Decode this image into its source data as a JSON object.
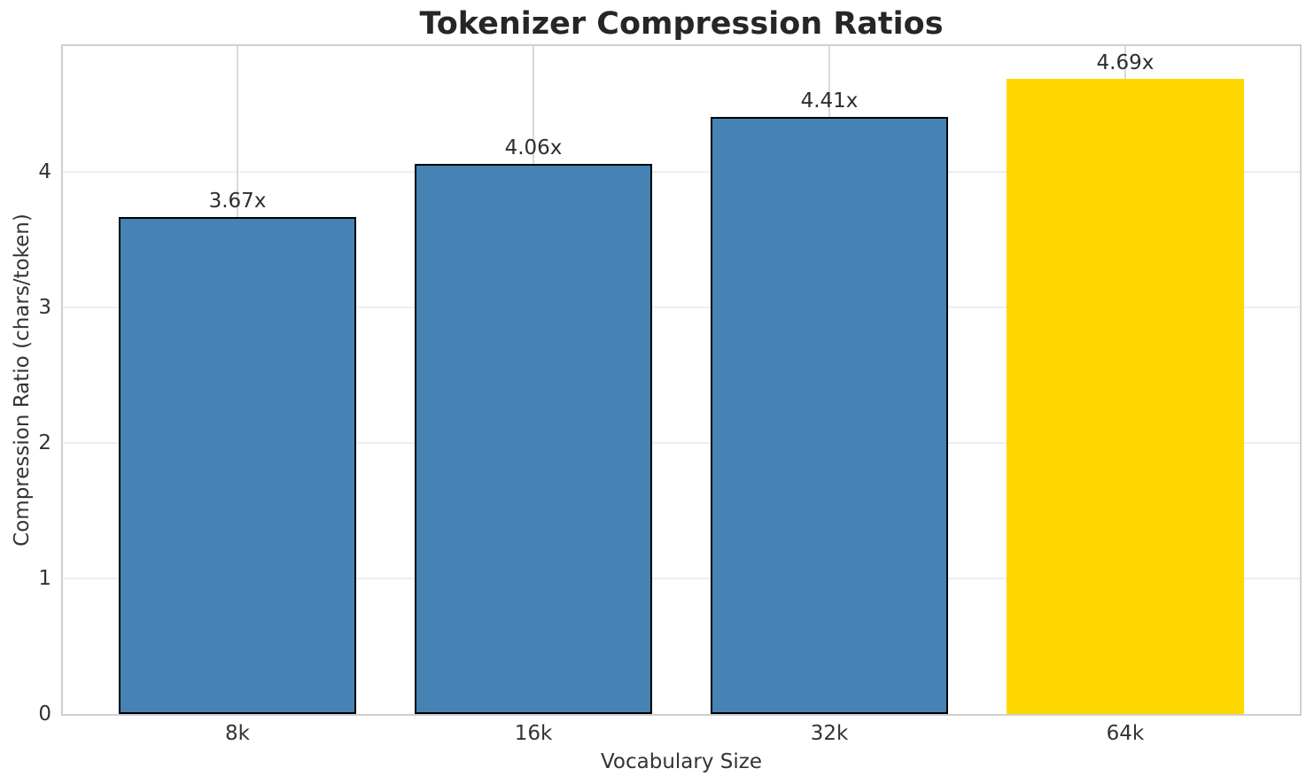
{
  "chart_data": {
    "type": "bar",
    "title": "Tokenizer Compression Ratios",
    "xlabel": "Vocabulary Size",
    "ylabel": "Compression Ratio (chars/token)",
    "categories": [
      "8k",
      "16k",
      "32k",
      "64k"
    ],
    "values": [
      3.67,
      4.06,
      4.41,
      4.69
    ],
    "bars": [
      {
        "category": "8k",
        "value": 3.67,
        "label": "3.67x",
        "color": "#4682B4",
        "edge": "#000000"
      },
      {
        "category": "16k",
        "value": 4.06,
        "label": "4.06x",
        "color": "#4682B4",
        "edge": "#000000"
      },
      {
        "category": "32k",
        "value": 4.41,
        "label": "4.41x",
        "color": "#4682B4",
        "edge": "#000000"
      },
      {
        "category": "64k",
        "value": 4.69,
        "label": "4.69x",
        "color": "#FFD700",
        "edge": "none"
      }
    ],
    "highlighted_category": "64k",
    "ylim": [
      0,
      4.93
    ],
    "yticks": [
      0,
      1,
      2,
      3,
      4
    ],
    "grid": true,
    "grid_axes": "both",
    "legend_position": "none",
    "colors": {
      "default_bar": "#4682B4",
      "highlight_bar": "#FFD700",
      "bar_edge": "#000000",
      "text": "#262626",
      "spine": "#cfcfcf",
      "hgrid": "#eeeeee",
      "vgrid": "#d9d9d9"
    }
  }
}
